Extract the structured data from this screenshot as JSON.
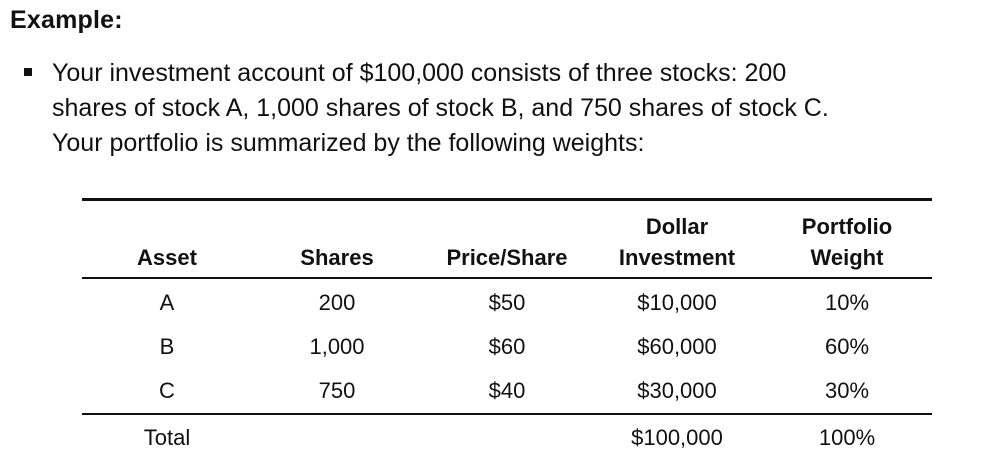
{
  "heading": "Example:",
  "bullet": {
    "lines": [
      "Your investment account of $100,000 consists of three stocks: 200",
      "shares of stock A, 1,000 shares of stock B, and 750 shares of stock C.",
      "Your portfolio is summarized by the following weights:"
    ]
  },
  "table": {
    "headers": [
      {
        "line1": "",
        "line2": "Asset"
      },
      {
        "line1": "",
        "line2": "Shares"
      },
      {
        "line1": "",
        "line2": "Price/Share"
      },
      {
        "line1": "Dollar",
        "line2": "Investment"
      },
      {
        "line1": "Portfolio",
        "line2": "Weight"
      }
    ],
    "rows": [
      [
        "A",
        "200",
        "$50",
        "$10,000",
        "10%"
      ],
      [
        "B",
        "1,000",
        "$60",
        "$60,000",
        "60%"
      ],
      [
        "C",
        "750",
        "$40",
        "$30,000",
        "30%"
      ]
    ],
    "total": [
      "Total",
      "",
      "",
      "$100,000",
      "100%"
    ]
  }
}
